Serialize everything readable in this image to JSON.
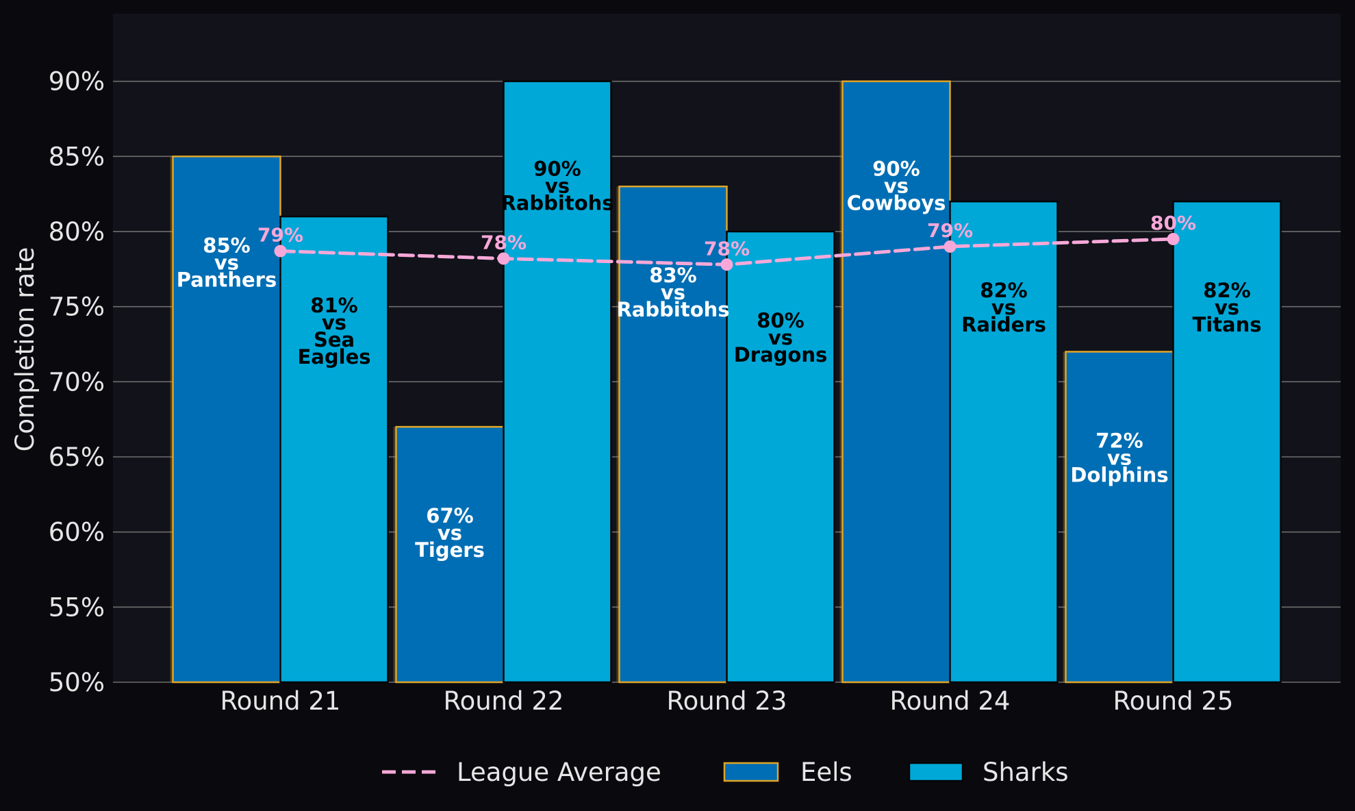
{
  "chart_data": {
    "type": "bar",
    "title": "",
    "xlabel": "",
    "ylabel": "Completion rate",
    "ylim": [
      50,
      94.5
    ],
    "yticks": [
      50,
      55,
      60,
      65,
      70,
      75,
      80,
      85,
      90
    ],
    "ytick_labels": [
      "50%",
      "55%",
      "60%",
      "65%",
      "70%",
      "75%",
      "80%",
      "85%",
      "90%"
    ],
    "grid": "horizontal",
    "legend_position": "bottom-center",
    "categories": [
      "Round 21",
      "Round 22",
      "Round 23",
      "Round 24",
      "Round 25"
    ],
    "series": [
      {
        "name": "Eels",
        "type": "bar",
        "color": "#006eb4",
        "edge_color": "#e0a526",
        "label_color": "#ffffff",
        "values": [
          85,
          67,
          83,
          90,
          72
        ],
        "labels": [
          [
            "85%",
            "vs",
            "Panthers"
          ],
          [
            "67%",
            "vs",
            "Tigers"
          ],
          [
            "83%",
            "vs",
            "Rabbitohs"
          ],
          [
            "90%",
            "vs",
            "Cowboys"
          ],
          [
            "72%",
            "vs",
            "Dolphins"
          ]
        ]
      },
      {
        "name": "Sharks",
        "type": "bar",
        "color": "#00a8d8",
        "edge_color": "#050505",
        "label_color": "#000000",
        "values": [
          81,
          90,
          80,
          82,
          82
        ],
        "labels": [
          [
            "81%",
            "vs",
            "Sea",
            "Eagles"
          ],
          [
            "90%",
            "vs",
            "Rabbitohs"
          ],
          [
            "80%",
            "vs",
            "Dragons"
          ],
          [
            "82%",
            "vs",
            "Raiders"
          ],
          [
            "82%",
            "vs",
            "Titans"
          ]
        ]
      },
      {
        "name": "League Average",
        "type": "line",
        "style": "dashed",
        "color": "#f7a8d8",
        "values": [
          78.7,
          78.2,
          77.8,
          79.0,
          79.5
        ],
        "labels": [
          "79%",
          "78%",
          "78%",
          "79%",
          "80%"
        ]
      }
    ],
    "legend_order": [
      "League Average",
      "Eels",
      "Sharks"
    ]
  },
  "colors": {
    "background": "#0a0a0e",
    "plot_background": "#11121a",
    "grid": "#6e6e6e",
    "text": "#e6e6e6"
  }
}
